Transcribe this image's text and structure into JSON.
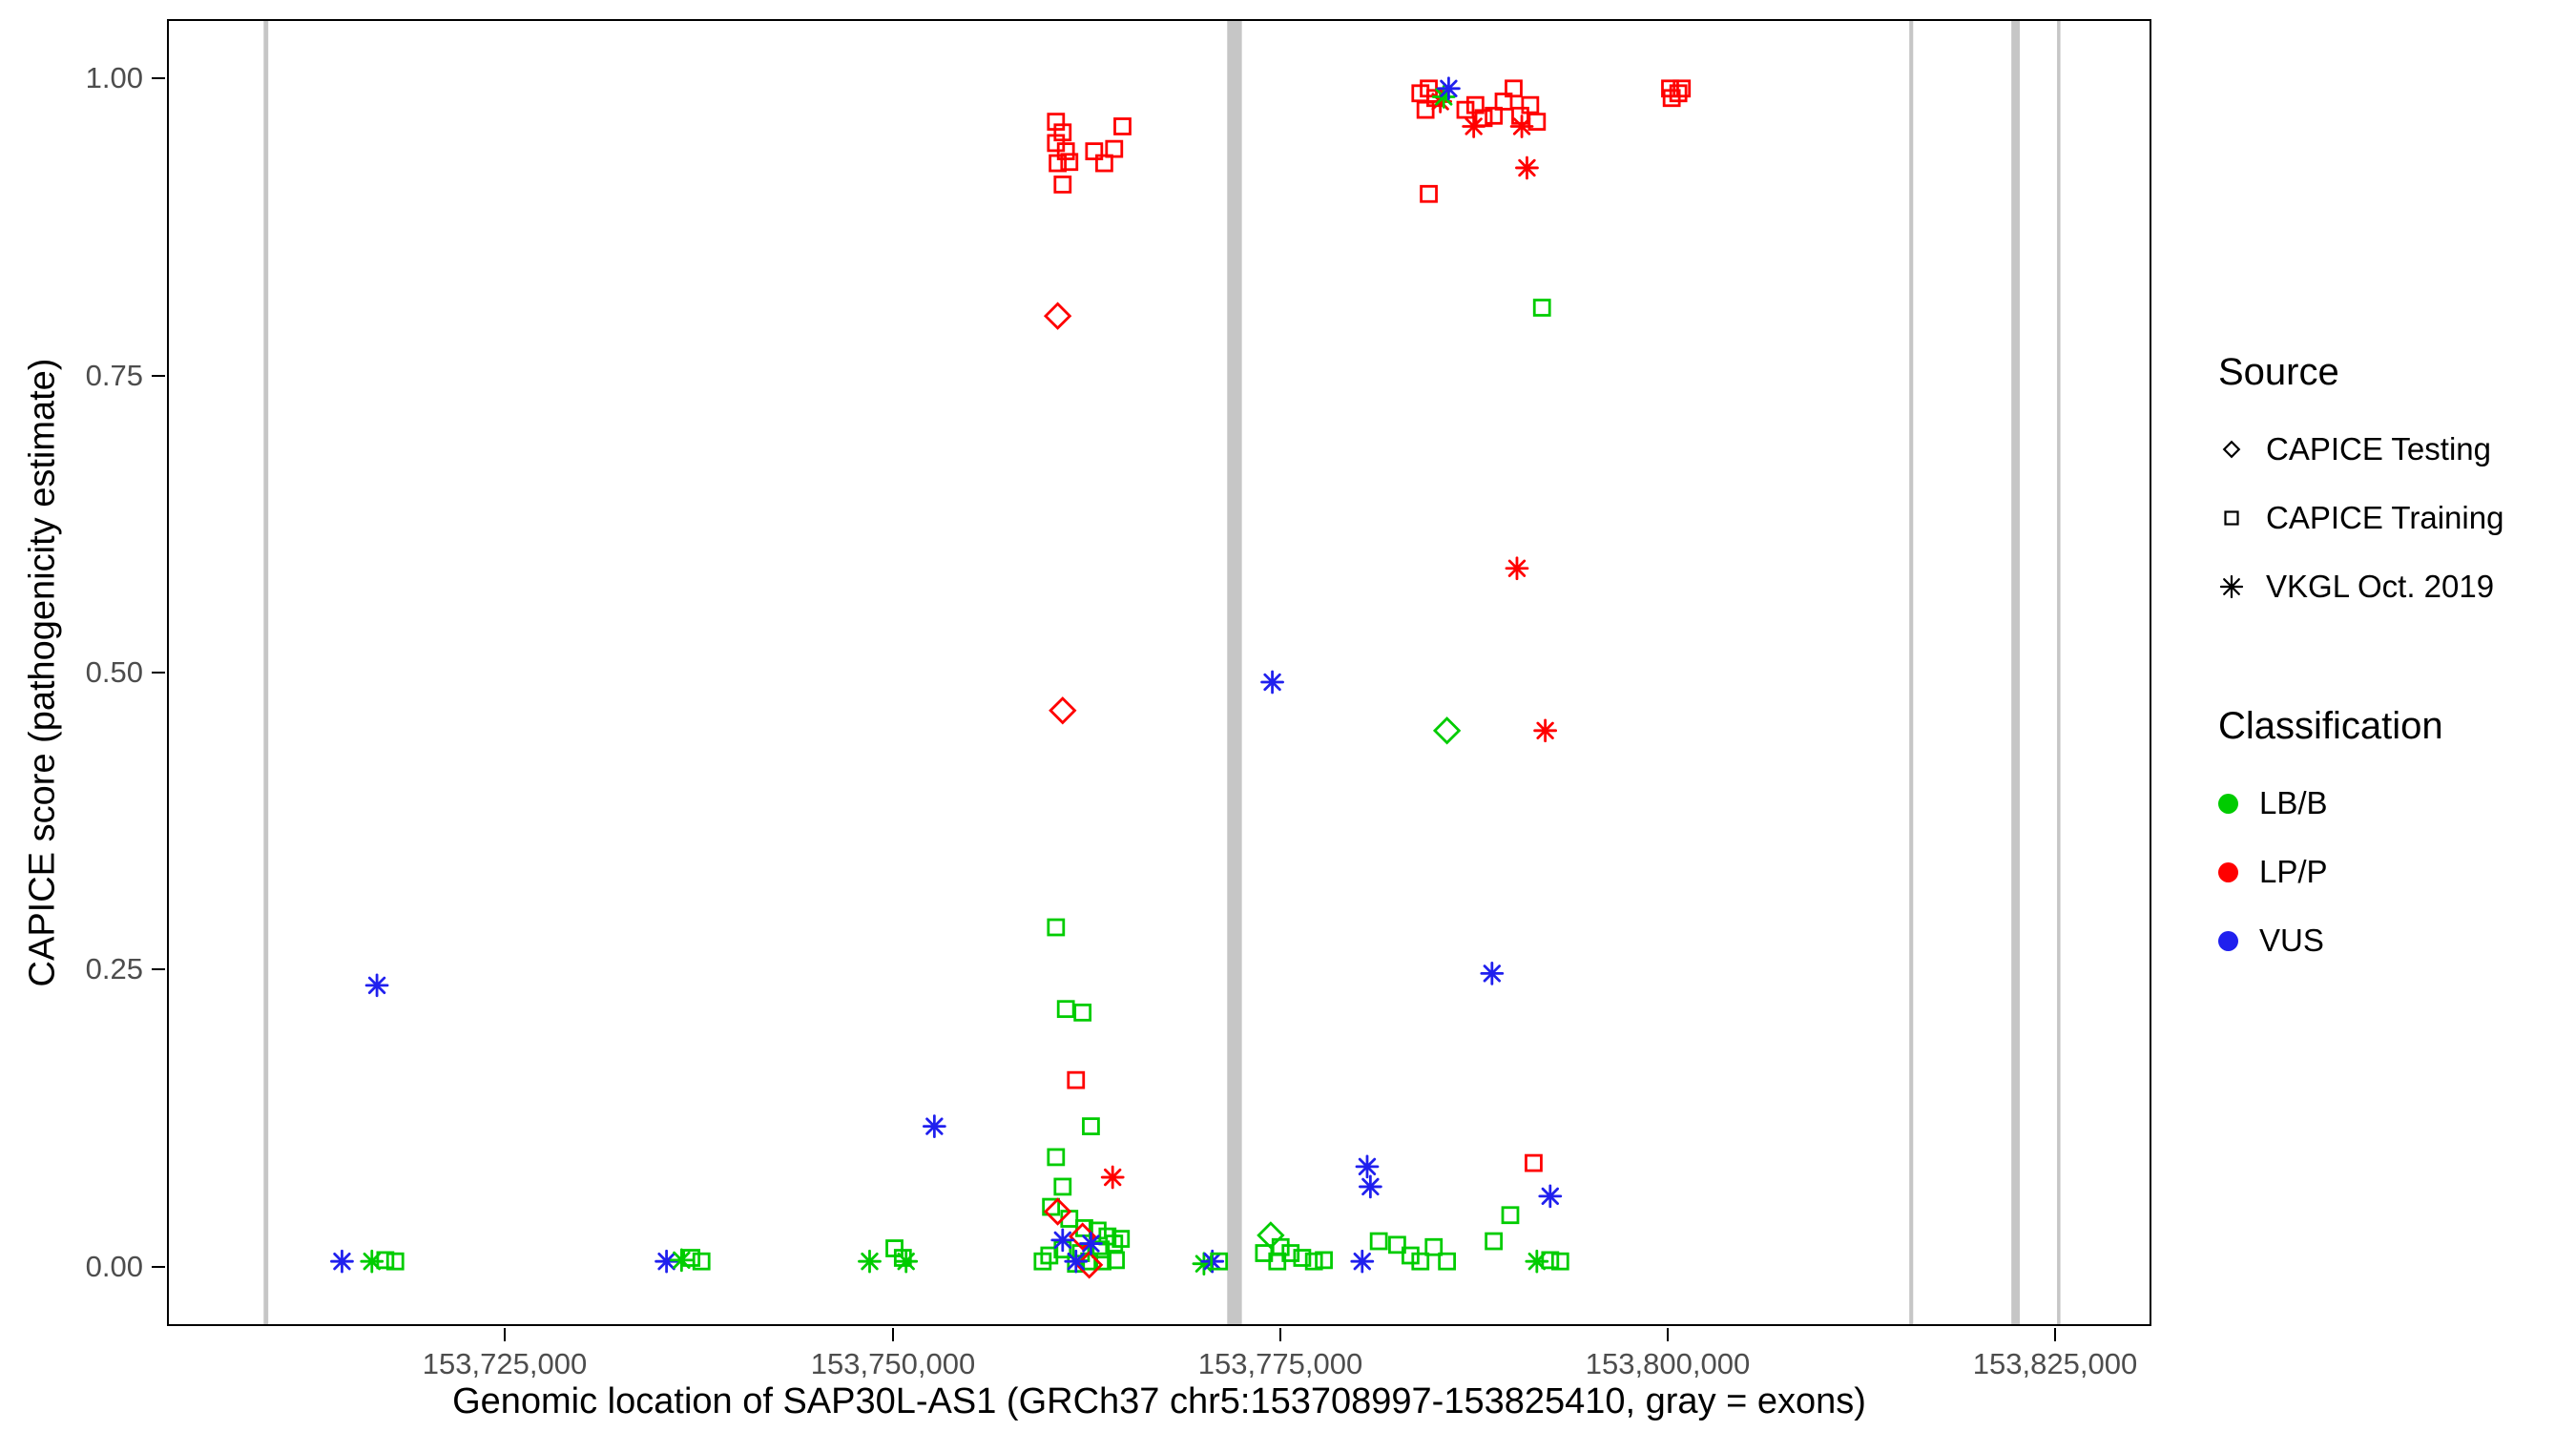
{
  "legend": {
    "source_title": "Source",
    "classification_title": "Classification"
  },
  "chart_data": {
    "type": "scatter",
    "title": "",
    "xlabel": "Genomic location of SAP30L-AS1 (GRCh37 chr5:153708997-153825410, gray = exons)",
    "ylabel": "CAPICE score (pathogenicity estimate)",
    "xlim": [
      153703177,
      153831230
    ],
    "ylim": [
      -0.05,
      1.05
    ],
    "grid": false,
    "legend_position": "right",
    "x_ticks": [
      {
        "v": 153725000,
        "label": "153,725,000"
      },
      {
        "v": 153750000,
        "label": "153,750,000"
      },
      {
        "v": 153775000,
        "label": "153,775,000"
      },
      {
        "v": 153800000,
        "label": "153,800,000"
      },
      {
        "v": 153825000,
        "label": "153,825,000"
      }
    ],
    "y_ticks": [
      {
        "v": 0.0,
        "label": "0.00"
      },
      {
        "v": 0.25,
        "label": "0.25"
      },
      {
        "v": 0.5,
        "label": "0.50"
      },
      {
        "v": 0.75,
        "label": "0.75"
      },
      {
        "v": 1.0,
        "label": "1.00"
      }
    ],
    "exon_color": "#C6C6C6",
    "exon_regions": [
      [
        153709300,
        153709600
      ],
      [
        153771600,
        153772550
      ],
      [
        153815700,
        153815950
      ],
      [
        153822300,
        153822850
      ],
      [
        153825250,
        153825450
      ]
    ],
    "source_map": {
      "testing": {
        "label": "CAPICE Testing",
        "shape": "diamond"
      },
      "training": {
        "label": "CAPICE Training",
        "shape": "square"
      },
      "vkgl": {
        "label": "VKGL Oct. 2019",
        "shape": "asterisk"
      }
    },
    "class_map": {
      "lbb": {
        "label": "LB/B",
        "color": "#00CC00"
      },
      "lpp": {
        "label": "LP/P",
        "color": "#FF0000"
      },
      "vus": {
        "label": "VUS",
        "color": "#2020EE"
      }
    },
    "points": [
      {
        "x": 153714370,
        "y": 0.003,
        "s": "vkgl",
        "c": "vus"
      },
      {
        "x": 153716300,
        "y": 0.003,
        "s": "vkgl",
        "c": "lbb"
      },
      {
        "x": 153717170,
        "y": 0.004,
        "s": "training",
        "c": "lbb"
      },
      {
        "x": 153717810,
        "y": 0.003,
        "s": "training",
        "c": "lbb"
      },
      {
        "x": 153716630,
        "y": 0.236,
        "s": "vkgl",
        "c": "vus"
      },
      {
        "x": 153735350,
        "y": 0.003,
        "s": "vkgl",
        "c": "vus"
      },
      {
        "x": 153736320,
        "y": 0.004,
        "s": "vkgl",
        "c": "lbb"
      },
      {
        "x": 153736960,
        "y": 0.006,
        "s": "training",
        "c": "lbb"
      },
      {
        "x": 153737610,
        "y": 0.003,
        "s": "training",
        "c": "lbb"
      },
      {
        "x": 153748480,
        "y": 0.003,
        "s": "vkgl",
        "c": "lbb"
      },
      {
        "x": 153750090,
        "y": 0.014,
        "s": "training",
        "c": "lbb"
      },
      {
        "x": 153750630,
        "y": 0.006,
        "s": "training",
        "c": "lbb"
      },
      {
        "x": 153750840,
        "y": 0.003,
        "s": "vkgl",
        "c": "lbb"
      },
      {
        "x": 153752670,
        "y": 0.117,
        "s": "vkgl",
        "c": "vus"
      },
      {
        "x": 153760530,
        "y": 0.965,
        "s": "training",
        "c": "lpp"
      },
      {
        "x": 153760960,
        "y": 0.956,
        "s": "training",
        "c": "lpp"
      },
      {
        "x": 153760530,
        "y": 0.947,
        "s": "training",
        "c": "lpp"
      },
      {
        "x": 153761170,
        "y": 0.94,
        "s": "training",
        "c": "lpp"
      },
      {
        "x": 153760640,
        "y": 0.93,
        "s": "training",
        "c": "lpp"
      },
      {
        "x": 153761390,
        "y": 0.931,
        "s": "training",
        "c": "lpp"
      },
      {
        "x": 153760960,
        "y": 0.912,
        "s": "training",
        "c": "lpp"
      },
      {
        "x": 153763000,
        "y": 0.94,
        "s": "training",
        "c": "lpp"
      },
      {
        "x": 153763650,
        "y": 0.93,
        "s": "training",
        "c": "lpp"
      },
      {
        "x": 153764830,
        "y": 0.961,
        "s": "training",
        "c": "lpp"
      },
      {
        "x": 153764290,
        "y": 0.942,
        "s": "training",
        "c": "lpp"
      },
      {
        "x": 153760640,
        "y": 0.801,
        "s": "testing",
        "c": "lpp"
      },
      {
        "x": 153760960,
        "y": 0.468,
        "s": "testing",
        "c": "lpp"
      },
      {
        "x": 153760530,
        "y": 0.285,
        "s": "training",
        "c": "lbb"
      },
      {
        "x": 153761170,
        "y": 0.216,
        "s": "training",
        "c": "lbb"
      },
      {
        "x": 153762250,
        "y": 0.213,
        "s": "training",
        "c": "lbb"
      },
      {
        "x": 153762790,
        "y": 0.117,
        "s": "training",
        "c": "lbb"
      },
      {
        "x": 153761820,
        "y": 0.156,
        "s": "training",
        "c": "lpp"
      },
      {
        "x": 153764190,
        "y": 0.074,
        "s": "vkgl",
        "c": "lpp"
      },
      {
        "x": 153760530,
        "y": 0.091,
        "s": "training",
        "c": "lbb"
      },
      {
        "x": 153760960,
        "y": 0.066,
        "s": "training",
        "c": "lbb"
      },
      {
        "x": 153760210,
        "y": 0.049,
        "s": "training",
        "c": "lbb"
      },
      {
        "x": 153761390,
        "y": 0.039,
        "s": "training",
        "c": "lbb"
      },
      {
        "x": 153762360,
        "y": 0.031,
        "s": "training",
        "c": "lbb"
      },
      {
        "x": 153763220,
        "y": 0.029,
        "s": "training",
        "c": "lbb"
      },
      {
        "x": 153763860,
        "y": 0.024,
        "s": "training",
        "c": "lbb"
      },
      {
        "x": 153764290,
        "y": 0.018,
        "s": "training",
        "c": "lbb"
      },
      {
        "x": 153764720,
        "y": 0.022,
        "s": "training",
        "c": "lbb"
      },
      {
        "x": 153763430,
        "y": 0.013,
        "s": "training",
        "c": "lbb"
      },
      {
        "x": 153762140,
        "y": 0.01,
        "s": "training",
        "c": "lbb"
      },
      {
        "x": 153760960,
        "y": 0.013,
        "s": "training",
        "c": "lbb"
      },
      {
        "x": 153760100,
        "y": 0.008,
        "s": "training",
        "c": "lbb"
      },
      {
        "x": 153759670,
        "y": 0.003,
        "s": "training",
        "c": "lbb"
      },
      {
        "x": 153761820,
        "y": 0.001,
        "s": "training",
        "c": "lbb"
      },
      {
        "x": 153762680,
        "y": 0.003,
        "s": "training",
        "c": "lbb"
      },
      {
        "x": 153763540,
        "y": 0.003,
        "s": "training",
        "c": "lbb"
      },
      {
        "x": 153764400,
        "y": 0.004,
        "s": "training",
        "c": "lbb"
      },
      {
        "x": 153760640,
        "y": 0.045,
        "s": "testing",
        "c": "lpp"
      },
      {
        "x": 153762250,
        "y": 0.024,
        "s": "testing",
        "c": "lpp"
      },
      {
        "x": 153762680,
        "y": 0.0,
        "s": "testing",
        "c": "lpp"
      },
      {
        "x": 153760960,
        "y": 0.021,
        "s": "vkgl",
        "c": "vus"
      },
      {
        "x": 153762790,
        "y": 0.018,
        "s": "vkgl",
        "c": "vus"
      },
      {
        "x": 153761820,
        "y": 0.003,
        "s": "vkgl",
        "c": "vus"
      },
      {
        "x": 153770100,
        "y": 0.001,
        "s": "vkgl",
        "c": "lbb"
      },
      {
        "x": 153770640,
        "y": 0.003,
        "s": "vkgl",
        "c": "vus"
      },
      {
        "x": 153771070,
        "y": 0.003,
        "s": "training",
        "c": "lbb"
      },
      {
        "x": 153774520,
        "y": 0.492,
        "s": "vkgl",
        "c": "vus"
      },
      {
        "x": 153774410,
        "y": 0.025,
        "s": "testing",
        "c": "lbb"
      },
      {
        "x": 153775050,
        "y": 0.015,
        "s": "training",
        "c": "lbb"
      },
      {
        "x": 153773980,
        "y": 0.01,
        "s": "training",
        "c": "lbb"
      },
      {
        "x": 153775700,
        "y": 0.01,
        "s": "training",
        "c": "lbb"
      },
      {
        "x": 153776450,
        "y": 0.006,
        "s": "training",
        "c": "lbb"
      },
      {
        "x": 153774840,
        "y": 0.003,
        "s": "training",
        "c": "lbb"
      },
      {
        "x": 153777210,
        "y": 0.003,
        "s": "training",
        "c": "lbb"
      },
      {
        "x": 153777850,
        "y": 0.004,
        "s": "training",
        "c": "lbb"
      },
      {
        "x": 153780650,
        "y": 0.083,
        "s": "vkgl",
        "c": "vus"
      },
      {
        "x": 153780860,
        "y": 0.066,
        "s": "vkgl",
        "c": "vus"
      },
      {
        "x": 153780330,
        "y": 0.003,
        "s": "vkgl",
        "c": "vus"
      },
      {
        "x": 153781400,
        "y": 0.02,
        "s": "training",
        "c": "lbb"
      },
      {
        "x": 153782590,
        "y": 0.017,
        "s": "training",
        "c": "lbb"
      },
      {
        "x": 153784090,
        "y": 0.989,
        "s": "training",
        "c": "lpp"
      },
      {
        "x": 153784630,
        "y": 0.993,
        "s": "training",
        "c": "lpp"
      },
      {
        "x": 153785060,
        "y": 0.985,
        "s": "training",
        "c": "lpp"
      },
      {
        "x": 153784420,
        "y": 0.975,
        "s": "training",
        "c": "lpp"
      },
      {
        "x": 153785380,
        "y": 0.982,
        "s": "vkgl",
        "c": "lpp"
      },
      {
        "x": 153785600,
        "y": 0.986,
        "s": "vkgl",
        "c": "lbb"
      },
      {
        "x": 153785920,
        "y": 0.993,
        "s": "vkgl",
        "c": "vus"
      },
      {
        "x": 153784630,
        "y": 0.904,
        "s": "training",
        "c": "lpp"
      },
      {
        "x": 153787000,
        "y": 0.975,
        "s": "training",
        "c": "lpp"
      },
      {
        "x": 153787640,
        "y": 0.979,
        "s": "training",
        "c": "lpp"
      },
      {
        "x": 153788180,
        "y": 0.968,
        "s": "training",
        "c": "lpp"
      },
      {
        "x": 153787540,
        "y": 0.961,
        "s": "vkgl",
        "c": "lpp"
      },
      {
        "x": 153788830,
        "y": 0.97,
        "s": "training",
        "c": "lpp"
      },
      {
        "x": 153789470,
        "y": 0.982,
        "s": "training",
        "c": "lpp"
      },
      {
        "x": 153790120,
        "y": 0.993,
        "s": "training",
        "c": "lpp"
      },
      {
        "x": 153790550,
        "y": 0.97,
        "s": "training",
        "c": "lpp"
      },
      {
        "x": 153791190,
        "y": 0.979,
        "s": "training",
        "c": "lpp"
      },
      {
        "x": 153790650,
        "y": 0.961,
        "s": "vkgl",
        "c": "lpp"
      },
      {
        "x": 153790980,
        "y": 0.926,
        "s": "vkgl",
        "c": "lpp"
      },
      {
        "x": 153791620,
        "y": 0.965,
        "s": "training",
        "c": "lpp"
      },
      {
        "x": 153791950,
        "y": 0.808,
        "s": "training",
        "c": "lbb"
      },
      {
        "x": 153790330,
        "y": 0.588,
        "s": "vkgl",
        "c": "lpp"
      },
      {
        "x": 153785810,
        "y": 0.451,
        "s": "testing",
        "c": "lbb"
      },
      {
        "x": 153792160,
        "y": 0.451,
        "s": "vkgl",
        "c": "lpp"
      },
      {
        "x": 153788720,
        "y": 0.246,
        "s": "vkgl",
        "c": "vus"
      },
      {
        "x": 153791410,
        "y": 0.086,
        "s": "training",
        "c": "lpp"
      },
      {
        "x": 153792480,
        "y": 0.058,
        "s": "vkgl",
        "c": "vus"
      },
      {
        "x": 153789900,
        "y": 0.042,
        "s": "training",
        "c": "lbb"
      },
      {
        "x": 153788830,
        "y": 0.02,
        "s": "training",
        "c": "lbb"
      },
      {
        "x": 153784950,
        "y": 0.015,
        "s": "training",
        "c": "lbb"
      },
      {
        "x": 153783450,
        "y": 0.008,
        "s": "training",
        "c": "lbb"
      },
      {
        "x": 153784090,
        "y": 0.003,
        "s": "training",
        "c": "lbb"
      },
      {
        "x": 153785810,
        "y": 0.003,
        "s": "training",
        "c": "lbb"
      },
      {
        "x": 153791620,
        "y": 0.003,
        "s": "vkgl",
        "c": "lbb"
      },
      {
        "x": 153792480,
        "y": 0.004,
        "s": "training",
        "c": "lbb"
      },
      {
        "x": 153793130,
        "y": 0.003,
        "s": "training",
        "c": "lbb"
      },
      {
        "x": 153800230,
        "y": 0.993,
        "s": "training",
        "c": "lpp"
      },
      {
        "x": 153800770,
        "y": 0.989,
        "s": "training",
        "c": "lpp"
      },
      {
        "x": 153800340,
        "y": 0.985,
        "s": "training",
        "c": "lpp"
      },
      {
        "x": 153800990,
        "y": 0.993,
        "s": "training",
        "c": "lpp"
      }
    ]
  }
}
